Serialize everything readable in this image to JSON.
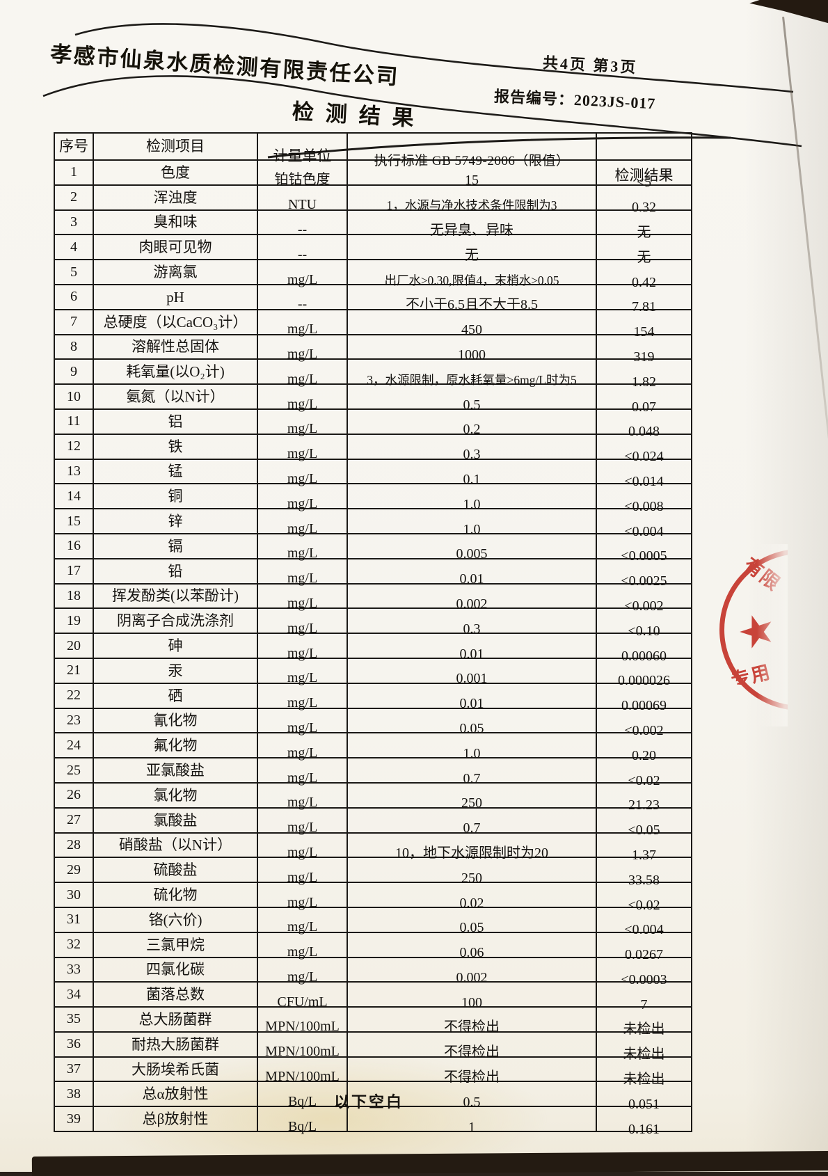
{
  "colors": {
    "paper": "#f8f6f1",
    "ink": "#17140f",
    "table_border": "#1b1916",
    "stamp_red": "#c5352a",
    "scan_background": "#241b12"
  },
  "header": {
    "company": "孝感市仙泉水质检测有限责任公司",
    "page_info": "共4页 第3页",
    "report_no_label": "报告编号：",
    "report_no": "2023JS-017",
    "title": "检测结果"
  },
  "table": {
    "columns": [
      "序号",
      "检测项目",
      "计量单位",
      "执行标准 GB 5749-2006（限值）",
      "检测结果"
    ],
    "rows": [
      {
        "no": "1",
        "item": "色度",
        "unit": "铂钴色度",
        "standard": "15",
        "result": "<5"
      },
      {
        "no": "2",
        "item": "浑浊度",
        "unit": "NTU",
        "standard": "1，水源与净水技术条件限制为3",
        "result": "0.32"
      },
      {
        "no": "3",
        "item": "臭和味",
        "unit": "--",
        "standard": "无异臭、异味",
        "result": "无"
      },
      {
        "no": "4",
        "item": "肉眼可见物",
        "unit": "--",
        "standard": "无",
        "result": "无"
      },
      {
        "no": "5",
        "item": "游离氯",
        "unit": "mg/L",
        "standard": "出厂水≥0.30,限值4，末梢水≥0.05",
        "result": "0.42"
      },
      {
        "no": "6",
        "item": "pH",
        "unit": "--",
        "standard": "不小于6.5且不大于8.5",
        "result": "7.81"
      },
      {
        "no": "7",
        "item": "总硬度（以CaCO₃计）",
        "unit": "mg/L",
        "standard": "450",
        "result": "154"
      },
      {
        "no": "8",
        "item": "溶解性总固体",
        "unit": "mg/L",
        "standard": "1000",
        "result": "319"
      },
      {
        "no": "9",
        "item": "耗氧量(以O₂计)",
        "unit": "mg/L",
        "standard": "3，水源限制，原水耗氧量>6mg/L时为5",
        "result": "1.82"
      },
      {
        "no": "10",
        "item": "氨氮（以N计）",
        "unit": "mg/L",
        "standard": "0.5",
        "result": "0.07"
      },
      {
        "no": "11",
        "item": "铝",
        "unit": "mg/L",
        "standard": "0.2",
        "result": "0.048"
      },
      {
        "no": "12",
        "item": "铁",
        "unit": "mg/L",
        "standard": "0.3",
        "result": "<0.024"
      },
      {
        "no": "13",
        "item": "锰",
        "unit": "mg/L",
        "standard": "0.1",
        "result": "<0.014"
      },
      {
        "no": "14",
        "item": "铜",
        "unit": "mg/L",
        "standard": "1.0",
        "result": "<0.008"
      },
      {
        "no": "15",
        "item": "锌",
        "unit": "mg/L",
        "standard": "1.0",
        "result": "<0.004"
      },
      {
        "no": "16",
        "item": "镉",
        "unit": "mg/L",
        "standard": "0.005",
        "result": "<0.0005"
      },
      {
        "no": "17",
        "item": "铅",
        "unit": "mg/L",
        "standard": "0.01",
        "result": "<0.0025"
      },
      {
        "no": "18",
        "item": "挥发酚类(以苯酚计)",
        "unit": "mg/L",
        "standard": "0.002",
        "result": "<0.002"
      },
      {
        "no": "19",
        "item": "阴离子合成洗涤剂",
        "unit": "mg/L",
        "standard": "0.3",
        "result": "<0.10"
      },
      {
        "no": "20",
        "item": "砷",
        "unit": "mg/L",
        "standard": "0.01",
        "result": "0.00060"
      },
      {
        "no": "21",
        "item": "汞",
        "unit": "mg/L",
        "standard": "0.001",
        "result": "0.000026"
      },
      {
        "no": "22",
        "item": "硒",
        "unit": "mg/L",
        "standard": "0.01",
        "result": "0.00069"
      },
      {
        "no": "23",
        "item": "氰化物",
        "unit": "mg/L",
        "standard": "0.05",
        "result": "<0.002"
      },
      {
        "no": "24",
        "item": "氟化物",
        "unit": "mg/L",
        "standard": "1.0",
        "result": "0.20"
      },
      {
        "no": "25",
        "item": "亚氯酸盐",
        "unit": "mg/L",
        "standard": "0.7",
        "result": "<0.02"
      },
      {
        "no": "26",
        "item": "氯化物",
        "unit": "mg/L",
        "standard": "250",
        "result": "21.23"
      },
      {
        "no": "27",
        "item": "氯酸盐",
        "unit": "mg/L",
        "standard": "0.7",
        "result": "<0.05"
      },
      {
        "no": "28",
        "item": "硝酸盐（以N计）",
        "unit": "mg/L",
        "standard": "10，地下水源限制时为20",
        "result": "1.37"
      },
      {
        "no": "29",
        "item": "硫酸盐",
        "unit": "mg/L",
        "standard": "250",
        "result": "33.58"
      },
      {
        "no": "30",
        "item": "硫化物",
        "unit": "mg/L",
        "standard": "0.02",
        "result": "<0.02"
      },
      {
        "no": "31",
        "item": "铬(六价)",
        "unit": "mg/L",
        "standard": "0.05",
        "result": "<0.004"
      },
      {
        "no": "32",
        "item": "三氯甲烷",
        "unit": "mg/L",
        "standard": "0.06",
        "result": "0.0267"
      },
      {
        "no": "33",
        "item": "四氯化碳",
        "unit": "mg/L",
        "standard": "0.002",
        "result": "<0.0003"
      },
      {
        "no": "34",
        "item": "菌落总数",
        "unit": "CFU/mL",
        "standard": "100",
        "result": "7"
      },
      {
        "no": "35",
        "item": "总大肠菌群",
        "unit": "MPN/100mL",
        "standard": "不得检出",
        "result": "未检出"
      },
      {
        "no": "36",
        "item": "耐热大肠菌群",
        "unit": "MPN/100mL",
        "standard": "不得检出",
        "result": "未检出"
      },
      {
        "no": "37",
        "item": "大肠埃希氏菌",
        "unit": "MPN/100mL",
        "standard": "不得检出",
        "result": "未检出"
      },
      {
        "no": "38",
        "item": "总α放射性",
        "unit": "Bq/L",
        "standard": "0.5",
        "result": "0.051"
      },
      {
        "no": "39",
        "item": "总β放射性",
        "unit": "Bq/L",
        "standard": "1",
        "result": "0.161"
      }
    ]
  },
  "footer": {
    "blank_note": "以下空白"
  },
  "stamp": {
    "fragment_top": "有限",
    "fragment_bottom": "专用",
    "star": "★",
    "color": "#c5352a"
  }
}
